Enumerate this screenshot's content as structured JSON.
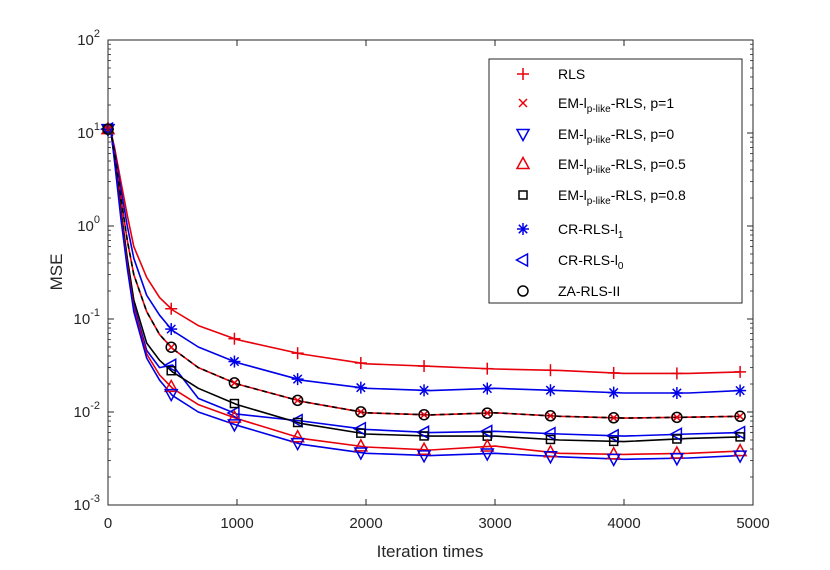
{
  "chart_data": {
    "type": "line",
    "title": "",
    "xlabel": "Iteration times",
    "ylabel": "MSE",
    "xlim": [
      0,
      5000
    ],
    "ylim": [
      0.001,
      100
    ],
    "yscale": "log",
    "x_ticks": [
      0,
      1000,
      2000,
      3000,
      4000,
      5000
    ],
    "x_tick_labels": [
      "0",
      "1000",
      "2000",
      "3000",
      "4000",
      "5000"
    ],
    "y_ticks": [
      {
        "value": 100,
        "base": "10",
        "exp": "2"
      },
      {
        "value": 10,
        "base": "10",
        "exp": "1"
      },
      {
        "value": 1,
        "base": "10",
        "exp": "0"
      },
      {
        "value": 0.1,
        "base": "10",
        "exp": "-1"
      },
      {
        "value": 0.01,
        "base": "10",
        "exp": "-2"
      },
      {
        "value": 0.001,
        "base": "10",
        "exp": "-3"
      }
    ],
    "legend_position": "top-right",
    "x": [
      0,
      25,
      50,
      100,
      150,
      200,
      300,
      400,
      500,
      700,
      1000,
      1500,
      2000,
      2500,
      3000,
      3500,
      4000,
      4500,
      4900
    ],
    "marker_x": [
      0,
      490,
      980,
      1470,
      1960,
      2450,
      2940,
      3430,
      3920,
      4410,
      4900
    ],
    "series": [
      {
        "name_parts": [
          "RLS"
        ],
        "color": "#e8000b",
        "marker": "plus",
        "values": [
          11,
          10,
          7,
          3,
          1.3,
          0.6,
          0.28,
          0.17,
          0.125,
          0.085,
          0.06,
          0.042,
          0.033,
          0.031,
          0.029,
          0.028,
          0.026,
          0.026,
          0.027
        ]
      },
      {
        "name_parts": [
          "EM-l",
          "p-like",
          "-RLS, p=1"
        ],
        "color": "#e8000b",
        "marker": "x",
        "values": [
          11,
          10,
          6,
          2,
          0.7,
          0.3,
          0.12,
          0.068,
          0.048,
          0.03,
          0.02,
          0.013,
          0.0098,
          0.0093,
          0.0098,
          0.009,
          0.0086,
          0.0088,
          0.009
        ]
      },
      {
        "name_parts": [
          "EM-l",
          "p-like",
          "-RLS, p=0"
        ],
        "color": "#0000e8",
        "marker": "triangle-down",
        "values": [
          11,
          10,
          5,
          1.2,
          0.35,
          0.12,
          0.038,
          0.022,
          0.015,
          0.01,
          0.0072,
          0.0045,
          0.0036,
          0.0034,
          0.0036,
          0.0033,
          0.0031,
          0.0032,
          0.0034
        ]
      },
      {
        "name_parts": [
          "EM-l",
          "p-like",
          "-RLS, p=0.5"
        ],
        "color": "#e8000b",
        "marker": "triangle-up",
        "values": [
          11,
          10,
          5.2,
          1.3,
          0.38,
          0.13,
          0.042,
          0.025,
          0.018,
          0.012,
          0.0085,
          0.0052,
          0.0042,
          0.0039,
          0.0043,
          0.0036,
          0.0035,
          0.0036,
          0.0038
        ]
      },
      {
        "name_parts": [
          "EM-l",
          "p-like",
          "-RLS, p=0.8"
        ],
        "color": "#000000",
        "marker": "square",
        "values": [
          11,
          10,
          5.5,
          1.5,
          0.45,
          0.16,
          0.055,
          0.036,
          0.027,
          0.018,
          0.012,
          0.0075,
          0.0058,
          0.0055,
          0.0055,
          0.005,
          0.0048,
          0.0052,
          0.0054
        ]
      },
      {
        "name_parts": [
          "CR-RLS-l",
          "1",
          ""
        ],
        "color": "#0000e8",
        "marker": "asterisk",
        "values": [
          11,
          10,
          6.5,
          2.5,
          1.0,
          0.45,
          0.18,
          0.11,
          0.075,
          0.05,
          0.034,
          0.022,
          0.018,
          0.017,
          0.018,
          0.017,
          0.016,
          0.016,
          0.017
        ]
      },
      {
        "name_parts": [
          "CR-RLS-l",
          "0",
          ""
        ],
        "color": "#0000e8",
        "marker": "triangle-left",
        "values": [
          11,
          10,
          5.3,
          1.4,
          0.4,
          0.14,
          0.046,
          0.03,
          0.032,
          0.014,
          0.0095,
          0.008,
          0.0065,
          0.006,
          0.0062,
          0.0058,
          0.0055,
          0.0058,
          0.006
        ]
      },
      {
        "name_parts": [
          "ZA-RLS-II"
        ],
        "color": "#000000",
        "marker": "circle",
        "values": [
          11,
          10,
          6,
          2,
          0.7,
          0.3,
          0.12,
          0.068,
          0.048,
          0.03,
          0.02,
          0.013,
          0.0098,
          0.0093,
          0.0098,
          0.009,
          0.0086,
          0.0088,
          0.009
        ]
      }
    ]
  }
}
